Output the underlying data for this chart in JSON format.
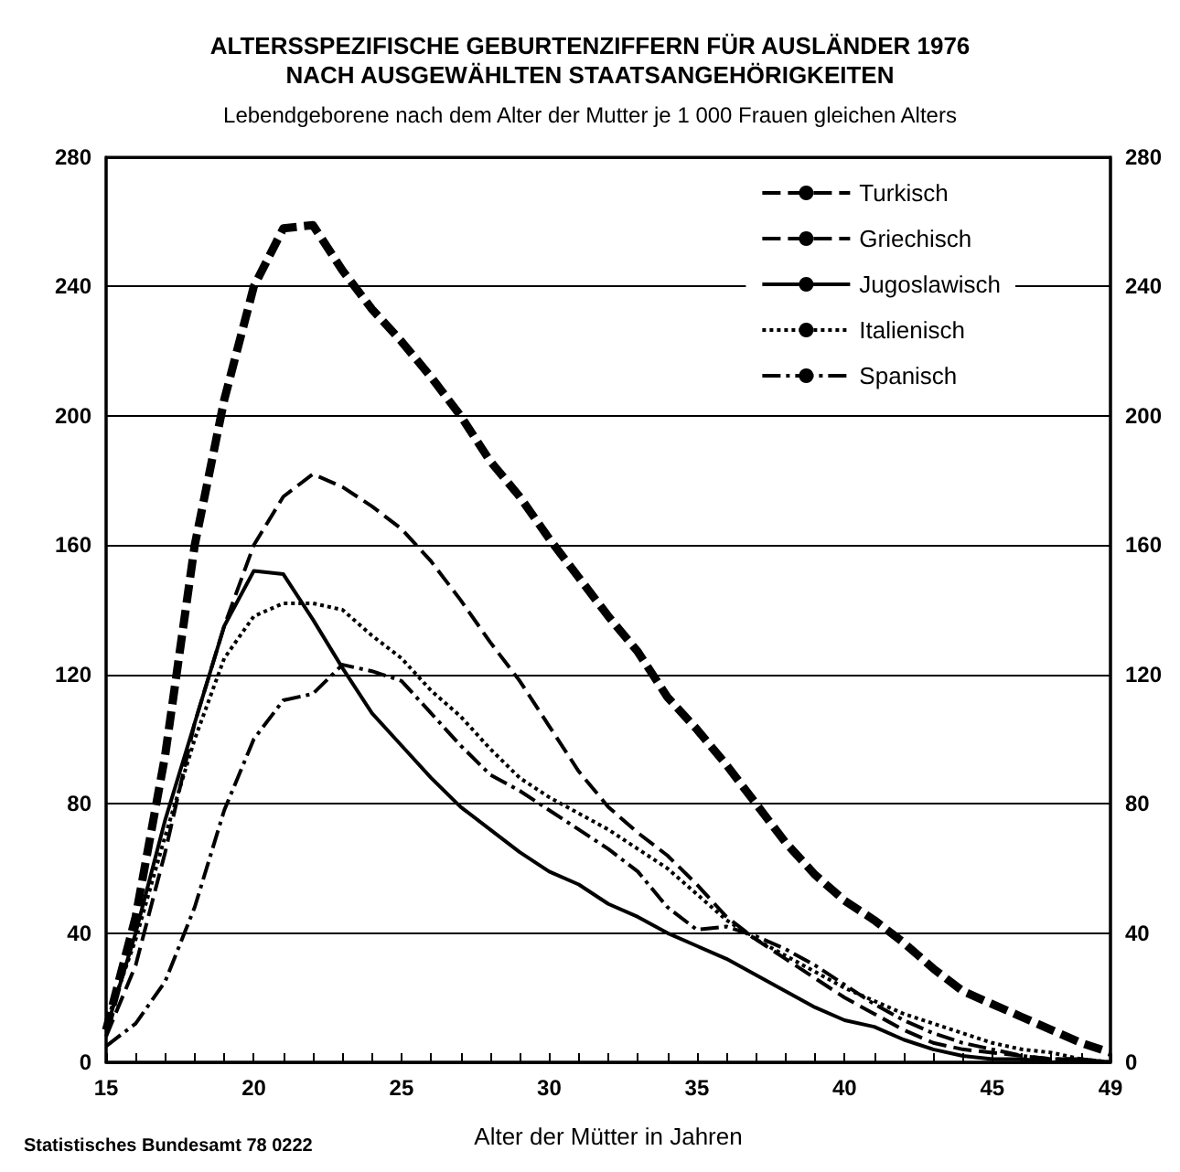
{
  "chart_data": {
    "type": "line",
    "title": "ALTERSSPEZIFISCHE GEBURTENZIFFERN FÜR AUSLÄNDER 1976\nNACH AUSGEWÄHLTEN STAATSANGEHÖRIGKEITEN",
    "subtitle": "Lebendgeborene nach dem Alter der Mutter je 1 000 Frauen gleichen Alters",
    "xlabel": "Alter der Mütter in Jahren",
    "annotations": [
      "Statistisches Bundesamt 78 0222"
    ],
    "x": [
      15,
      16,
      17,
      18,
      19,
      20,
      21,
      22,
      23,
      24,
      25,
      26,
      27,
      28,
      29,
      30,
      31,
      32,
      33,
      34,
      35,
      36,
      37,
      38,
      39,
      40,
      41,
      42,
      43,
      44,
      45,
      46,
      47,
      48,
      49
    ],
    "series": [
      {
        "name": "Turkisch",
        "color": "#000000",
        "line_style": "dashed",
        "values": [
          10,
          45,
          95,
          160,
          205,
          240,
          258,
          259,
          245,
          233,
          223,
          212,
          200,
          186,
          175,
          162,
          150,
          138,
          127,
          113,
          103,
          92,
          80,
          68,
          58,
          50,
          44,
          37,
          29,
          22,
          18,
          14,
          10,
          6,
          3
        ]
      },
      {
        "name": "Griechisch",
        "color": "#000000",
        "line_style": "dashed",
        "values": [
          8,
          30,
          65,
          105,
          135,
          160,
          175,
          182,
          178,
          172,
          165,
          155,
          143,
          130,
          118,
          104,
          90,
          79,
          71,
          64,
          55,
          45,
          38,
          32,
          26,
          20,
          15,
          10,
          6,
          4,
          3,
          2,
          1,
          1,
          0
        ]
      },
      {
        "name": "Jugoslawisch",
        "color": "#000000",
        "line_style": "solid",
        "values": [
          10,
          40,
          75,
          105,
          135,
          152,
          151,
          137,
          122,
          108,
          98,
          88,
          79,
          72,
          65,
          59,
          55,
          49,
          45,
          40,
          36,
          32,
          27,
          22,
          17,
          13,
          11,
          7,
          4,
          2,
          1,
          1,
          0,
          0,
          0
        ]
      },
      {
        "name": "Italienisch",
        "color": "#000000",
        "line_style": "dotted",
        "values": [
          12,
          38,
          70,
          100,
          125,
          138,
          142,
          142,
          140,
          132,
          125,
          115,
          107,
          97,
          88,
          82,
          77,
          72,
          66,
          60,
          52,
          44,
          38,
          33,
          28,
          23,
          19,
          15,
          12,
          9,
          6,
          4,
          3,
          1,
          0
        ]
      },
      {
        "name": "Spanisch",
        "color": "#000000",
        "line_style": "dashdot",
        "values": [
          5,
          12,
          25,
          48,
          78,
          100,
          112,
          114,
          123,
          121,
          118,
          108,
          98,
          89,
          84,
          78,
          72,
          66,
          59,
          48,
          41,
          42,
          39,
          35,
          30,
          24,
          18,
          13,
          9,
          6,
          4,
          2,
          1,
          1,
          0
        ]
      }
    ],
    "xlim": [
      15,
      49
    ],
    "xticks": [
      15,
      {
        "value": 16,
        "label": null
      },
      {
        "value": 17,
        "label": null
      },
      {
        "value": 18,
        "label": null
      },
      {
        "value": 19,
        "label": null
      },
      20,
      {
        "value": 21,
        "label": null
      },
      {
        "value": 22,
        "label": null
      },
      {
        "value": 23,
        "label": null
      },
      {
        "value": 24,
        "label": null
      },
      25,
      {
        "value": 26,
        "label": null
      },
      {
        "value": 27,
        "label": null
      },
      {
        "value": 28,
        "label": null
      },
      {
        "value": 29,
        "label": null
      },
      30,
      {
        "value": 31,
        "label": null
      },
      {
        "value": 32,
        "label": null
      },
      {
        "value": 33,
        "label": null
      },
      {
        "value": 34,
        "label": null
      },
      35,
      {
        "value": 36,
        "label": null
      },
      {
        "value": 37,
        "label": null
      },
      {
        "value": 38,
        "label": null
      },
      {
        "value": 39,
        "label": null
      },
      40,
      {
        "value": 41,
        "label": null
      },
      {
        "value": 42,
        "label": null
      },
      {
        "value": 43,
        "label": null
      },
      {
        "value": 44,
        "label": null
      },
      45,
      {
        "value": 46,
        "label": null
      },
      {
        "value": 47,
        "label": null
      },
      {
        "value": 48,
        "label": null
      },
      49
    ],
    "ylim": [
      0,
      280
    ],
    "yticks": [
      0,
      40,
      80,
      120,
      160,
      200,
      240,
      280
    ],
    "y2lim": [
      0,
      280
    ],
    "y2ticks": [
      0,
      40,
      80,
      120,
      160,
      200,
      240,
      280
    ],
    "grid": "y",
    "legend": "top right",
    "marker": "none"
  }
}
